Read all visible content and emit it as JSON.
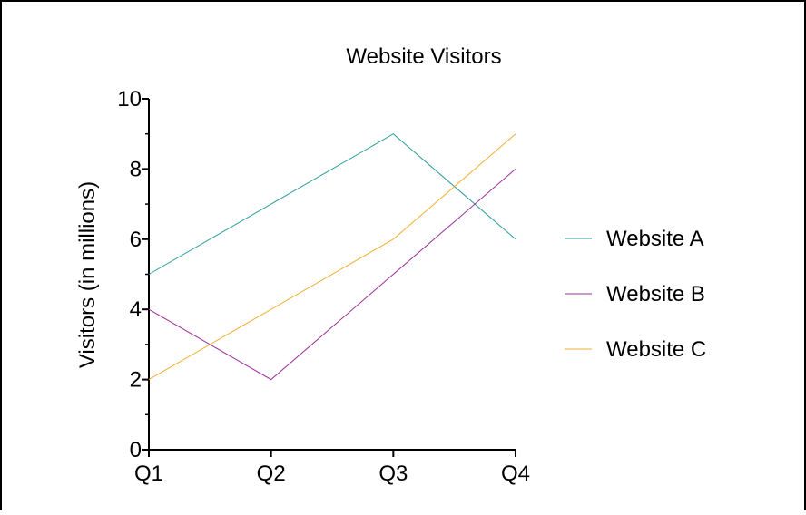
{
  "chart_data": {
    "type": "line",
    "title": "Website Visitors",
    "xlabel": "",
    "ylabel": "Visitors (in millions)",
    "categories": [
      "Q1",
      "Q2",
      "Q3",
      "Q4"
    ],
    "ylim": [
      0,
      10
    ],
    "yticks": [
      0,
      2,
      4,
      6,
      8,
      10
    ],
    "ytick_labels": [
      "0",
      "2",
      "4",
      "6",
      "8",
      "10"
    ],
    "grid": false,
    "legend_position": "right",
    "series": [
      {
        "name": "Website A",
        "values": [
          5,
          7,
          9,
          6
        ],
        "color": "#2a9d9a"
      },
      {
        "name": "Website B",
        "values": [
          4,
          2,
          5,
          8
        ],
        "color": "#9b2d9b"
      },
      {
        "name": "Website C",
        "values": [
          2,
          4,
          6,
          9
        ],
        "color": "#f2b134"
      }
    ]
  }
}
